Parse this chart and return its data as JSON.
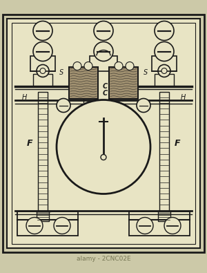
{
  "bg_outer": "#ccc9a8",
  "bg_inner": "#e8e4c4",
  "line_color": "#1a1a1a",
  "coil_fill": "#a09070",
  "fig_width": 3.0,
  "fig_height": 3.95,
  "dpi": 100,
  "label_S_left": "S",
  "label_S_right": "S",
  "label_H_left": "H",
  "label_H_right": "H",
  "label_C1": "C",
  "label_C2": "C",
  "label_F_left": "F",
  "label_F_right": "F",
  "bottom_label": "alamy - 2CNC02E",
  "bottom_label_color": "#777755"
}
